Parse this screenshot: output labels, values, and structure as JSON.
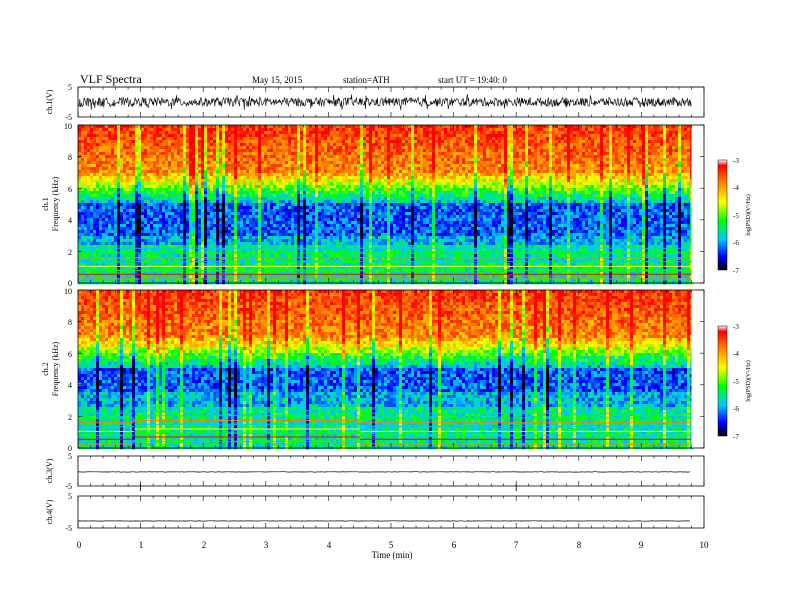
{
  "header": {
    "title": "VLF  Spectra",
    "date": "May 15, 2015",
    "station": "station=ATH",
    "start": "start  UT =   19:40: 0"
  },
  "panels": {
    "ch1": {
      "label": "ch.1(V)",
      "ticks": [
        "5",
        "-5"
      ]
    },
    "spec1": {
      "label": "ch.1",
      "ylabel": "Frequency  (kHz)",
      "ticks": [
        "10",
        "8",
        "6",
        "4",
        "2",
        "0"
      ]
    },
    "spec2": {
      "label": "ch.2",
      "ylabel": "Frequency  (kHz)",
      "ticks": [
        "10",
        "8",
        "6",
        "4",
        "2",
        "0"
      ]
    },
    "ch3": {
      "label": "ch.3(V)",
      "ticks": [
        "5",
        "-5"
      ]
    },
    "ch4": {
      "label": "ch.4(V)",
      "ticks": [
        "5",
        "-5"
      ]
    }
  },
  "colorbars": [
    {
      "ticks": [
        "-3",
        "-4",
        "-5",
        "-6",
        "-7"
      ],
      "label": "log(PSD)(V²/Hz)"
    },
    {
      "ticks": [
        "-3",
        "-4",
        "-5",
        "-6",
        "-7"
      ],
      "label": "log(PSD)(V²/Hz)"
    }
  ],
  "xaxis": {
    "label": "Time  (min)",
    "ticks": [
      "0",
      "1",
      "2",
      "3",
      "4",
      "5",
      "6",
      "7",
      "8",
      "9",
      "10"
    ]
  },
  "colors": {
    "colormap": [
      "#000000",
      "#0000ff",
      "#00c8ff",
      "#00ff00",
      "#ffff00",
      "#ff8000",
      "#ff0000",
      "#ffffff"
    ]
  },
  "chart_data": {
    "type": "heatmap",
    "title": "VLF  Spectra",
    "xlabel": "Time  (min)",
    "xlim": [
      0,
      10
    ],
    "data_end_min": 9.8,
    "panels": [
      {
        "name": "ch.1(V)",
        "type": "line",
        "ylim": [
          -5,
          5
        ],
        "amplitude_approx": 1.5
      },
      {
        "name": "ch.1",
        "type": "heatmap",
        "ylabel": "Frequency  (kHz)",
        "ylim": [
          0,
          10
        ],
        "zlim": [
          -7,
          -3
        ],
        "zlabel": "log(PSD)(V²/Hz)",
        "features": {
          "high_power_above_khz": 7,
          "low_power_band_khz": [
            3,
            5
          ],
          "horizontal_lines_below_khz": 2.4
        }
      },
      {
        "name": "ch.2",
        "type": "heatmap",
        "ylabel": "Frequency  (kHz)",
        "ylim": [
          0,
          10
        ],
        "zlim": [
          -7,
          -3
        ],
        "zlabel": "log(PSD)(V²/Hz)",
        "features": {
          "high_power_above_khz": 7,
          "low_power_band_khz": [
            3.5,
            5
          ],
          "horizontal_lines_below_khz": 2.6,
          "band_shift_at_min": [
            0.9,
            4.5
          ]
        }
      },
      {
        "name": "ch.3(V)",
        "type": "line",
        "ylim": [
          -5,
          5
        ],
        "level": -0.3,
        "ticks_at_min": [
          1,
          7
        ]
      },
      {
        "name": "ch.4(V)",
        "type": "line",
        "ylim": [
          -5,
          5
        ],
        "level": -2.8
      }
    ]
  }
}
